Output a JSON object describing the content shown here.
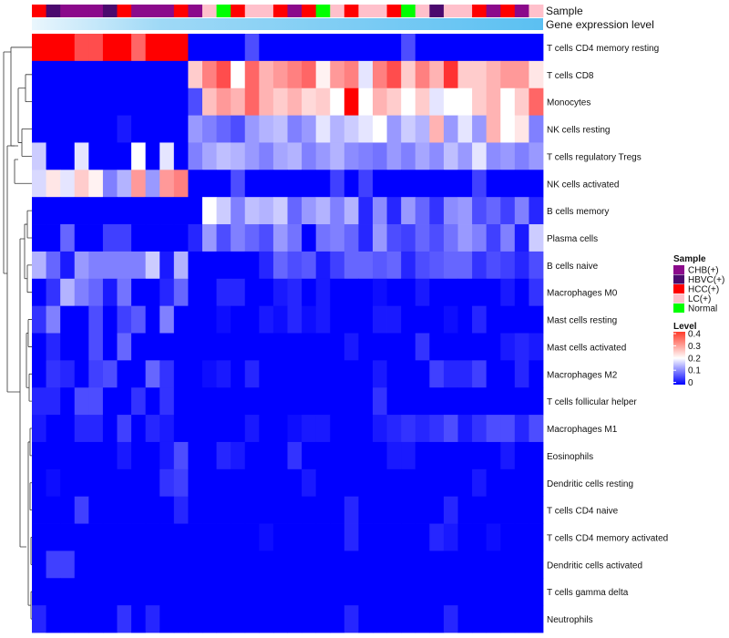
{
  "chart_data": {
    "type": "heatmap",
    "title": "",
    "annotation_titles": {
      "sample": "Sample",
      "expression": "Gene expression level"
    },
    "sample_legend": {
      "title": "Sample",
      "items": [
        {
          "label": "CHB(+)",
          "color": "#8B0A8B"
        },
        {
          "label": "HBVC(+)",
          "color": "#4B0A6E"
        },
        {
          "label": "HCC(+)",
          "color": "#FF0000"
        },
        {
          "label": "LC(+)",
          "color": "#FFC0CB"
        },
        {
          "label": "Normal",
          "color": "#00FF00"
        }
      ]
    },
    "level_legend": {
      "title": "Level",
      "ticks": [
        "0.4",
        "0.3",
        "0.2",
        "0.1",
        "0"
      ],
      "range": [
        0,
        0.4
      ],
      "colors": [
        "#0000FF",
        "#FFFFFF",
        "#FF0000"
      ]
    },
    "expression_bar_color": "#5BC0F2",
    "columns": [
      "HCC(+)",
      "HBVC(+)",
      "CHB(+)",
      "CHB(+)",
      "CHB(+)",
      "HBVC(+)",
      "HCC(+)",
      "CHB(+)",
      "CHB(+)",
      "CHB(+)",
      "HCC(+)",
      "CHB(+)",
      "LC(+)",
      "Normal",
      "HCC(+)",
      "LC(+)",
      "LC(+)",
      "HCC(+)",
      "CHB(+)",
      "HCC(+)",
      "Normal",
      "LC(+)",
      "HCC(+)",
      "LC(+)",
      "LC(+)",
      "HCC(+)",
      "Normal",
      "LC(+)",
      "HBVC(+)",
      "LC(+)",
      "LC(+)",
      "HCC(+)",
      "CHB(+)",
      "HCC(+)",
      "CHB(+)",
      "LC(+)"
    ],
    "rows": [
      "T cells CD4 memory resting",
      "T cells CD8",
      "Monocytes",
      "NK cells resting",
      "T cells regulatory  Tregs",
      "NK cells activated",
      "B cells memory",
      "Plasma cells",
      "B cells naive",
      "Macrophages M0",
      "Mast cells resting",
      "Mast cells activated",
      "Macrophages M2",
      "T cells follicular helper",
      "Macrophages M1",
      "Eosinophils",
      "Dendritic cells resting",
      "T cells CD4 naive",
      "T cells CD4 memory activated",
      "Dendritic cells activated",
      "T cells gamma delta",
      "Neutrophils"
    ],
    "values": [
      [
        0.4,
        0.4,
        0.4,
        0.34,
        0.34,
        0.4,
        0.4,
        0.32,
        0.4,
        0.4,
        0.4,
        0.0,
        0.0,
        0.0,
        0.0,
        0.06,
        0.0,
        0.0,
        0.0,
        0.0,
        0.0,
        0.0,
        0.0,
        0.0,
        0.0,
        0.0,
        0.06,
        0.0,
        0.0,
        0.0,
        0.0,
        0.0,
        0.0,
        0.0,
        0.0,
        0.0
      ],
      [
        0.0,
        0.0,
        0.0,
        0.0,
        0.0,
        0.0,
        0.0,
        0.0,
        0.0,
        0.0,
        0.0,
        0.24,
        0.3,
        0.34,
        0.2,
        0.32,
        0.26,
        0.28,
        0.3,
        0.32,
        0.21,
        0.28,
        0.3,
        0.18,
        0.3,
        0.34,
        0.24,
        0.3,
        0.26,
        0.36,
        0.24,
        0.24,
        0.26,
        0.28,
        0.28,
        0.22
      ],
      [
        0.0,
        0.0,
        0.0,
        0.0,
        0.0,
        0.0,
        0.0,
        0.0,
        0.0,
        0.0,
        0.0,
        0.06,
        0.25,
        0.28,
        0.26,
        0.32,
        0.26,
        0.24,
        0.26,
        0.23,
        0.24,
        0.2,
        0.4,
        0.2,
        0.26,
        0.24,
        0.2,
        0.24,
        0.18,
        0.2,
        0.2,
        0.24,
        0.26,
        0.2,
        0.24,
        0.32
      ],
      [
        0.0,
        0.0,
        0.0,
        0.0,
        0.0,
        0.0,
        0.02,
        0.0,
        0.0,
        0.0,
        0.0,
        0.12,
        0.1,
        0.08,
        0.06,
        0.12,
        0.14,
        0.15,
        0.1,
        0.12,
        0.18,
        0.14,
        0.16,
        0.18,
        0.2,
        0.12,
        0.16,
        0.14,
        0.26,
        0.12,
        0.18,
        0.12,
        0.26,
        0.2,
        0.22,
        0.1
      ],
      [
        0.16,
        0.0,
        0.0,
        0.18,
        0.0,
        0.0,
        0.0,
        0.2,
        0.0,
        0.18,
        0.0,
        0.1,
        0.13,
        0.15,
        0.14,
        0.12,
        0.1,
        0.13,
        0.14,
        0.1,
        0.12,
        0.14,
        0.11,
        0.1,
        0.09,
        0.12,
        0.1,
        0.13,
        0.11,
        0.15,
        0.12,
        0.18,
        0.11,
        0.12,
        0.1,
        0.12
      ],
      [
        0.17,
        0.22,
        0.18,
        0.24,
        0.21,
        0.1,
        0.14,
        0.28,
        0.12,
        0.28,
        0.3,
        0.0,
        0.0,
        0.0,
        0.06,
        0.0,
        0.0,
        0.0,
        0.0,
        0.0,
        0.0,
        0.05,
        0.0,
        0.05,
        0.0,
        0.0,
        0.0,
        0.0,
        0.0,
        0.0,
        0.0,
        0.05,
        0.0,
        0.0,
        0.0,
        0.0
      ],
      [
        0.0,
        0.0,
        0.0,
        0.0,
        0.0,
        0.0,
        0.0,
        0.0,
        0.0,
        0.0,
        0.0,
        0.0,
        0.2,
        0.16,
        0.1,
        0.15,
        0.14,
        0.16,
        0.08,
        0.12,
        0.14,
        0.1,
        0.14,
        0.03,
        0.11,
        0.03,
        0.12,
        0.08,
        0.04,
        0.11,
        0.12,
        0.06,
        0.08,
        0.05,
        0.1,
        0.03
      ],
      [
        0.0,
        0.0,
        0.08,
        0.0,
        0.0,
        0.05,
        0.05,
        0.0,
        0.0,
        0.0,
        0.0,
        0.03,
        0.12,
        0.06,
        0.1,
        0.08,
        0.06,
        0.12,
        0.09,
        0.0,
        0.09,
        0.1,
        0.08,
        0.03,
        0.12,
        0.06,
        0.05,
        0.08,
        0.06,
        0.09,
        0.12,
        0.1,
        0.05,
        0.1,
        0.02,
        0.16
      ],
      [
        0.14,
        0.08,
        0.02,
        0.12,
        0.1,
        0.1,
        0.1,
        0.1,
        0.16,
        0.02,
        0.14,
        0.0,
        0.0,
        0.0,
        0.0,
        0.0,
        0.03,
        0.08,
        0.06,
        0.07,
        0.02,
        0.05,
        0.08,
        0.08,
        0.07,
        0.08,
        0.03,
        0.06,
        0.07,
        0.08,
        0.08,
        0.04,
        0.06,
        0.05,
        0.03,
        0.06
      ],
      [
        0.0,
        0.04,
        0.14,
        0.1,
        0.08,
        0.02,
        0.09,
        0.0,
        0.0,
        0.03,
        0.08,
        0.0,
        0.0,
        0.03,
        0.03,
        0.0,
        0.0,
        0.02,
        0.03,
        0.0,
        0.02,
        0.0,
        0.0,
        0.0,
        0.01,
        0.0,
        0.0,
        0.02,
        0.0,
        0.0,
        0.0,
        0.0,
        0.0,
        0.02,
        0.0,
        0.04
      ],
      [
        0.04,
        0.1,
        0.0,
        0.0,
        0.06,
        0.0,
        0.05,
        0.07,
        0.0,
        0.1,
        0.0,
        0.0,
        0.0,
        0.01,
        0.0,
        0.0,
        0.02,
        0.01,
        0.03,
        0.01,
        0.02,
        0.0,
        0.0,
        0.0,
        0.02,
        0.02,
        0.0,
        0.0,
        0.0,
        0.01,
        0.0,
        0.03,
        0.0,
        0.0,
        0.0,
        0.0
      ],
      [
        0.0,
        0.03,
        0.0,
        0.0,
        0.06,
        0.0,
        0.08,
        0.0,
        0.0,
        0.0,
        0.0,
        0.0,
        0.0,
        0.0,
        0.0,
        0.0,
        0.0,
        0.0,
        0.0,
        0.0,
        0.0,
        0.0,
        0.02,
        0.0,
        0.0,
        0.0,
        0.0,
        0.04,
        0.0,
        0.0,
        0.0,
        0.0,
        0.0,
        0.02,
        0.03,
        0.02
      ],
      [
        0.0,
        0.04,
        0.03,
        0.0,
        0.05,
        0.06,
        0.0,
        0.0,
        0.08,
        0.04,
        0.0,
        0.0,
        0.01,
        0.02,
        0.0,
        0.03,
        0.0,
        0.0,
        0.0,
        0.0,
        0.0,
        0.0,
        0.0,
        0.0,
        0.02,
        0.0,
        0.0,
        0.0,
        0.05,
        0.03,
        0.03,
        0.05,
        0.0,
        0.0,
        0.03,
        0.0
      ],
      [
        0.03,
        0.03,
        0.0,
        0.06,
        0.06,
        0.0,
        0.0,
        0.04,
        0.0,
        0.04,
        0.0,
        0.0,
        0.0,
        0.0,
        0.0,
        0.0,
        0.0,
        0.0,
        0.0,
        0.0,
        0.0,
        0.0,
        0.0,
        0.0,
        0.04,
        0.0,
        0.0,
        0.0,
        0.0,
        0.0,
        0.0,
        0.0,
        0.0,
        0.0,
        0.0,
        0.0
      ],
      [
        0.02,
        0.0,
        0.0,
        0.03,
        0.03,
        0.0,
        0.05,
        0.0,
        0.03,
        0.02,
        0.0,
        0.0,
        0.0,
        0.0,
        0.0,
        0.02,
        0.0,
        0.0,
        0.01,
        0.02,
        0.02,
        0.0,
        0.0,
        0.0,
        0.02,
        0.03,
        0.04,
        0.03,
        0.04,
        0.06,
        0.02,
        0.04,
        0.06,
        0.06,
        0.03,
        0.06
      ],
      [
        0.0,
        0.0,
        0.0,
        0.0,
        0.0,
        0.0,
        0.02,
        0.0,
        0.0,
        0.02,
        0.06,
        0.0,
        0.0,
        0.03,
        0.02,
        0.0,
        0.0,
        0.0,
        0.04,
        0.0,
        0.0,
        0.0,
        0.0,
        0.0,
        0.0,
        0.02,
        0.02,
        0.0,
        0.0,
        0.0,
        0.0,
        0.0,
        0.0,
        0.02,
        0.0,
        0.0
      ],
      [
        0.0,
        0.01,
        0.0,
        0.0,
        0.0,
        0.0,
        0.0,
        0.0,
        0.0,
        0.04,
        0.05,
        0.0,
        0.0,
        0.0,
        0.0,
        0.0,
        0.0,
        0.0,
        0.0,
        0.02,
        0.0,
        0.0,
        0.0,
        0.0,
        0.0,
        0.0,
        0.0,
        0.0,
        0.0,
        0.0,
        0.0,
        0.02,
        0.0,
        0.0,
        0.0,
        0.0
      ],
      [
        0.0,
        0.0,
        0.0,
        0.05,
        0.0,
        0.0,
        0.0,
        0.0,
        0.0,
        0.0,
        0.03,
        0.0,
        0.0,
        0.0,
        0.0,
        0.0,
        0.0,
        0.0,
        0.0,
        0.0,
        0.0,
        0.0,
        0.03,
        0.0,
        0.0,
        0.0,
        0.0,
        0.0,
        0.0,
        0.03,
        0.0,
        0.0,
        0.0,
        0.0,
        0.0,
        0.0
      ],
      [
        0.0,
        0.0,
        0.0,
        0.0,
        0.0,
        0.0,
        0.0,
        0.0,
        0.0,
        0.0,
        0.0,
        0.0,
        0.0,
        0.0,
        0.0,
        0.0,
        0.01,
        0.0,
        0.0,
        0.0,
        0.0,
        0.0,
        0.03,
        0.0,
        0.0,
        0.0,
        0.0,
        0.0,
        0.03,
        0.02,
        0.0,
        0.0,
        0.01,
        0.0,
        0.0,
        0.0
      ],
      [
        0.0,
        0.05,
        0.05,
        0.0,
        0.0,
        0.0,
        0.0,
        0.0,
        0.0,
        0.0,
        0.0,
        0.0,
        0.0,
        0.0,
        0.0,
        0.0,
        0.0,
        0.0,
        0.0,
        0.0,
        0.0,
        0.0,
        0.0,
        0.0,
        0.0,
        0.0,
        0.0,
        0.0,
        0.0,
        0.0,
        0.0,
        0.0,
        0.0,
        0.0,
        0.0,
        0.0
      ],
      [
        0.0,
        0.0,
        0.0,
        0.0,
        0.0,
        0.0,
        0.0,
        0.0,
        0.0,
        0.0,
        0.0,
        0.0,
        0.0,
        0.0,
        0.0,
        0.0,
        0.0,
        0.0,
        0.0,
        0.0,
        0.0,
        0.0,
        0.0,
        0.0,
        0.0,
        0.0,
        0.0,
        0.0,
        0.0,
        0.0,
        0.0,
        0.0,
        0.0,
        0.0,
        0.0,
        0.0
      ],
      [
        0.03,
        0.0,
        0.0,
        0.0,
        0.0,
        0.0,
        0.04,
        0.0,
        0.03,
        0.0,
        0.0,
        0.0,
        0.0,
        0.0,
        0.0,
        0.0,
        0.0,
        0.0,
        0.0,
        0.0,
        0.0,
        0.0,
        0.03,
        0.0,
        0.0,
        0.0,
        0.0,
        0.0,
        0.0,
        0.03,
        0.0,
        0.0,
        0.0,
        0.0,
        0.0,
        0.0
      ]
    ]
  }
}
